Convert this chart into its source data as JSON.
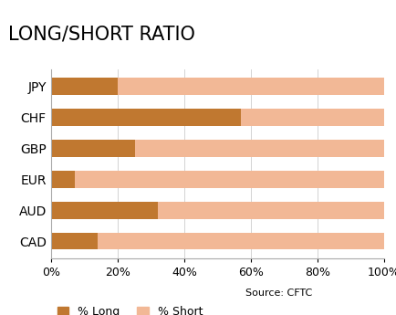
{
  "title": "LONG/SHORT RATIO",
  "categories": [
    "JPY",
    "CHF",
    "GBP",
    "EUR",
    "AUD",
    "CAD"
  ],
  "long_values": [
    20,
    57,
    25,
    7,
    32,
    14
  ],
  "short_values": [
    80,
    43,
    75,
    93,
    68,
    86
  ],
  "color_long": "#C07830",
  "color_short": "#F2B896",
  "xlabel_ticks": [
    "0%",
    "20%",
    "40%",
    "60%",
    "80%",
    "100%"
  ],
  "xlabel_vals": [
    0,
    20,
    40,
    60,
    80,
    100
  ],
  "source_text": "Source: CFTC",
  "legend_long": "% Long",
  "legend_short": "% Short",
  "bar_height": 0.55,
  "background_color": "#FFFFFF",
  "title_fontsize": 15,
  "label_fontsize": 10,
  "tick_fontsize": 9
}
